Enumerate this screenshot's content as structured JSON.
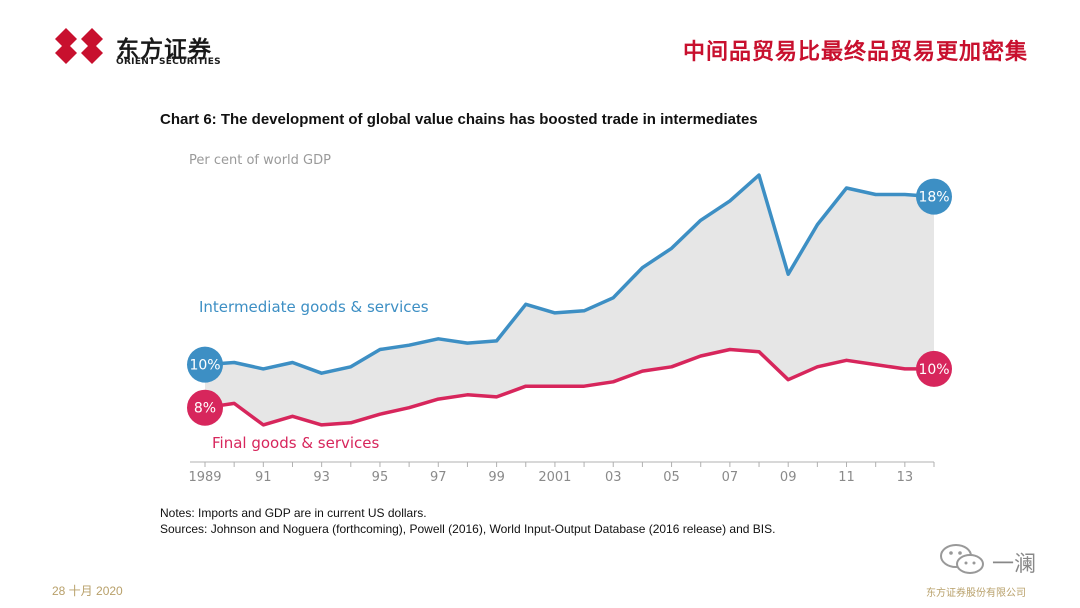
{
  "header": {
    "logo_cn": "东方证券",
    "logo_en": "ORIENT SECURITIES",
    "heading": "中间品贸易比最终品贸易更加密集"
  },
  "colors": {
    "brand_red": "#c8102e",
    "intermediate": "#3d8fc4",
    "final": "#d7265c",
    "fill": "#e6e6e6"
  },
  "chart_data": {
    "type": "line",
    "title": "Chart 6:  The development of global value chains has boosted trade in intermediates",
    "ylabel": "Per cent of world GDP",
    "xlabel": "",
    "x": [
      1989,
      1990,
      1991,
      1992,
      1993,
      1994,
      1995,
      1996,
      1997,
      1998,
      1999,
      2000,
      2001,
      2002,
      2003,
      2004,
      2005,
      2006,
      2007,
      2008,
      2009,
      2010,
      2011,
      2012,
      2013,
      2014
    ],
    "xticks": [
      {
        "x": 1989,
        "label": "1989"
      },
      {
        "x": 1991,
        "label": "91"
      },
      {
        "x": 1993,
        "label": "93"
      },
      {
        "x": 1995,
        "label": "95"
      },
      {
        "x": 1997,
        "label": "97"
      },
      {
        "x": 1999,
        "label": "99"
      },
      {
        "x": 2001,
        "label": "2001"
      },
      {
        "x": 2003,
        "label": "03"
      },
      {
        "x": 2005,
        "label": "05"
      },
      {
        "x": 2007,
        "label": "07"
      },
      {
        "x": 2009,
        "label": "09"
      },
      {
        "x": 2011,
        "label": "11"
      },
      {
        "x": 2013,
        "label": "13"
      }
    ],
    "ylim": [
      6.5,
      19.5
    ],
    "series": [
      {
        "name": "Intermediate goods & services",
        "values": [
          10.0,
          10.1,
          9.8,
          10.1,
          9.6,
          9.9,
          10.7,
          10.9,
          11.2,
          11.0,
          11.1,
          12.8,
          12.4,
          12.5,
          13.1,
          14.5,
          15.4,
          16.7,
          17.6,
          18.8,
          14.2,
          16.5,
          18.2,
          17.9,
          17.9,
          17.8
        ],
        "start_label": "10%",
        "end_label": "18%"
      },
      {
        "name": "Final goods & services",
        "values": [
          8.0,
          8.2,
          7.2,
          7.6,
          7.2,
          7.3,
          7.7,
          8.0,
          8.4,
          8.6,
          8.5,
          9.0,
          9.0,
          9.0,
          9.2,
          9.7,
          9.9,
          10.4,
          10.7,
          10.6,
          9.3,
          9.9,
          10.2,
          10.0,
          9.8,
          9.8
        ],
        "start_label": "8%",
        "end_label": "10%"
      }
    ],
    "grid": false,
    "legend": "inline"
  },
  "notes": {
    "line1": "Notes: Imports and GDP are in current US dollars.",
    "line2": "Sources: Johnson and Noguera (forthcoming), Powell (2016), World Input-Output Database (2016 release) and BIS."
  },
  "footer": {
    "date": "28 十月 2020",
    "company": "东方证券股份有限公司",
    "watermark": "一澜"
  }
}
